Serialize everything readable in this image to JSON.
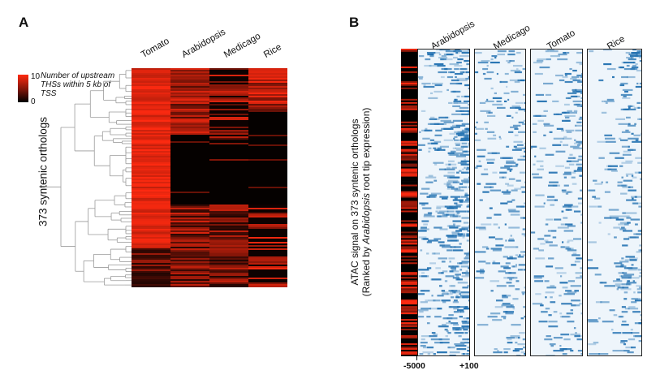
{
  "panel_a": {
    "letter": "A",
    "columns": [
      "Tomato",
      "Arabidopsis",
      "Medicago",
      "Rice"
    ],
    "legend": {
      "max": "10",
      "min": "0",
      "title": "Number of upstream THSs within 5 kb of TSS",
      "max_color": "#ff2a10",
      "min_color": "#000000"
    },
    "row_label": "373 syntenic orthologs"
  },
  "panel_b": {
    "letter": "B",
    "columns": [
      "Arabidopsis",
      "Medicago",
      "Tomato",
      "Rice"
    ],
    "y_label_line1": "ATAC signal on 373 syntenic orthologs",
    "y_label_line2_pre": "(Ranked by ",
    "y_label_line2_em": "Arabidopsis",
    "y_label_line2_post": " root tip expression)",
    "x_ticks": [
      "-5000",
      "+100"
    ],
    "signal_color": "#1f6fb0"
  }
}
